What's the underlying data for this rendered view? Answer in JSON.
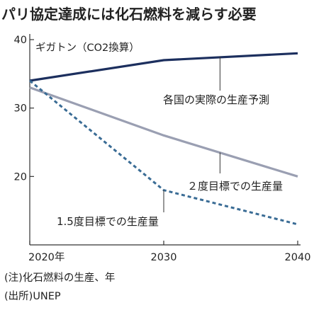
{
  "title": "パリ協定達成には化石燃料を減らす必要",
  "notes": [
    "(注)化石燃料の生産、年",
    "(出所)UNEP"
  ],
  "chart_data": {
    "type": "line",
    "ylabel": "ギガトン（CO2換算）",
    "x": [
      2020,
      2030,
      2040
    ],
    "x_tick_labels": [
      "2020年",
      "2030",
      "2040"
    ],
    "xlim": [
      2020,
      2040
    ],
    "ylim": [
      10,
      40
    ],
    "y_ticks": [
      20,
      30,
      40
    ],
    "grid": false,
    "series": [
      {
        "name": "各国の実際の生産予測",
        "x": [
          2020,
          2030,
          2040
        ],
        "values": [
          34,
          37,
          38
        ],
        "color": "#1c2f5e",
        "style": "solid"
      },
      {
        "name": "２度目標での生産量",
        "x": [
          2020,
          2030,
          2040
        ],
        "values": [
          33,
          26,
          20
        ],
        "color": "#9a9fb2",
        "style": "solid"
      },
      {
        "name": "1.5度目標での生産量",
        "x": [
          2020,
          2030,
          2040
        ],
        "values": [
          34,
          18,
          13
        ],
        "color": "#3a6c95",
        "style": "dashed"
      }
    ]
  }
}
